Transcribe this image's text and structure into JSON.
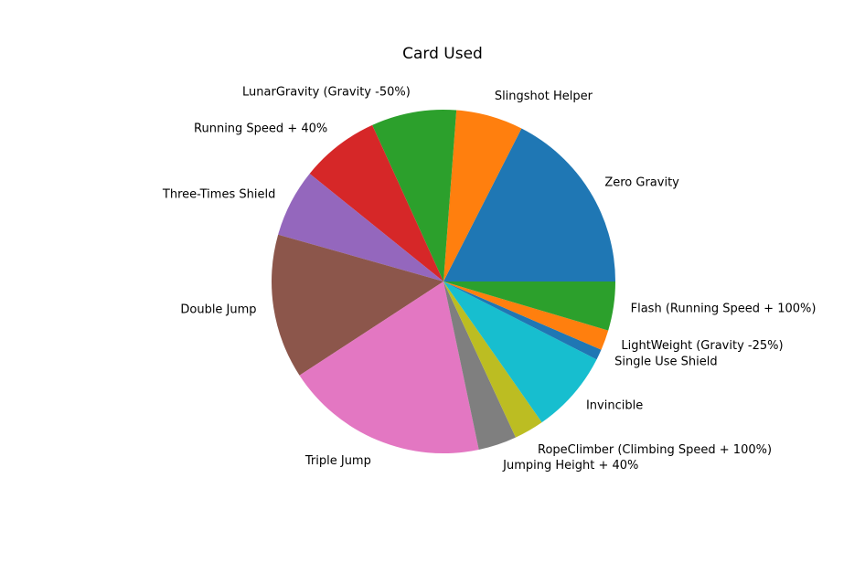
{
  "chart_data": {
    "type": "pie",
    "title": "Card Used",
    "start_angle_deg": 0,
    "direction": "counterclockwise",
    "slices": [
      {
        "label": "Zero Gravity",
        "value": 17.5,
        "color": "#1f77b4"
      },
      {
        "label": "Slingshot Helper",
        "value": 6.3,
        "color": "#ff7f0e"
      },
      {
        "label": "LunarGravity (Gravity -50%)",
        "value": 8.0,
        "color": "#2ca02c"
      },
      {
        "label": "Running Speed + 40%",
        "value": 7.4,
        "color": "#d62728"
      },
      {
        "label": "Three-Times Shield",
        "value": 6.4,
        "color": "#9467bd"
      },
      {
        "label": "Double Jump",
        "value": 13.6,
        "color": "#8c564b"
      },
      {
        "label": "Triple Jump",
        "value": 19.1,
        "color": "#e377c2"
      },
      {
        "label": "Jumping Height + 40%",
        "value": 3.6,
        "color": "#7f7f7f"
      },
      {
        "label": "RopeClimber (Climbing Speed + 100%)",
        "value": 2.8,
        "color": "#bcbd22"
      },
      {
        "label": "Invincible",
        "value": 7.8,
        "color": "#17becf"
      },
      {
        "label": "Single Use Shield",
        "value": 1.0,
        "color": "#1f77b4"
      },
      {
        "label": "LightWeight (Gravity -25%)",
        "value": 1.9,
        "color": "#ff7f0e"
      },
      {
        "label": "Flash (Running Speed + 100%)",
        "value": 4.6,
        "color": "#2ca02c"
      }
    ]
  }
}
